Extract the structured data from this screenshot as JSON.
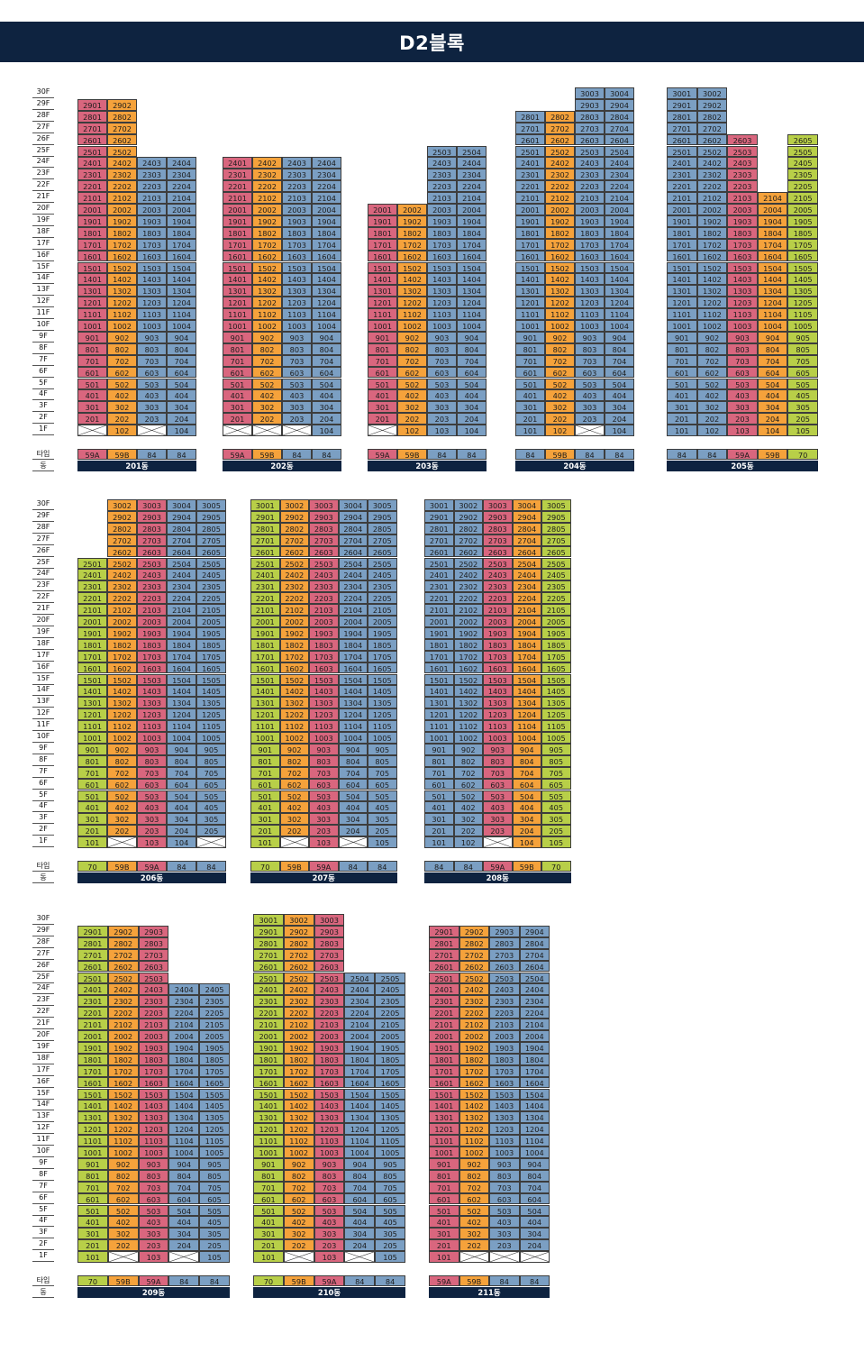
{
  "title": "D2블록",
  "labels": {
    "type": "타입",
    "dong": "동"
  },
  "colors": {
    "59A": "#d9667e",
    "59B": "#f5a23b",
    "84": "#7b9fc3",
    "70": "#b8cf48"
  },
  "floors": [
    "30F",
    "29F",
    "28F",
    "27F",
    "26F",
    "25F",
    "24F",
    "23F",
    "22F",
    "21F",
    "20F",
    "19F",
    "18F",
    "17F",
    "16F",
    "15F",
    "14F",
    "13F",
    "12F",
    "11F",
    "10F",
    "9F",
    "8F",
    "7F",
    "6F",
    "5F",
    "4F",
    "3F",
    "2F",
    "1F"
  ],
  "buildings": [
    {
      "name": "201동",
      "types": [
        "59A",
        "59B",
        "84",
        "84"
      ],
      "cols": [
        {
          "min": 2,
          "max": 29
        },
        {
          "min": 1,
          "max": 29
        },
        {
          "min": 2,
          "max": 24
        },
        {
          "min": 1,
          "max": 24
        }
      ]
    },
    {
      "name": "202동",
      "types": [
        "59A",
        "59B",
        "84",
        "84"
      ],
      "cols": [
        {
          "min": 2,
          "max": 24
        },
        {
          "min": 2,
          "max": 24
        },
        {
          "min": 2,
          "max": 24
        },
        {
          "min": 1,
          "max": 24
        }
      ]
    },
    {
      "name": "203동",
      "types": [
        "59A",
        "59B",
        "84",
        "84"
      ],
      "cols": [
        {
          "min": 2,
          "max": 20
        },
        {
          "min": 1,
          "max": 20
        },
        {
          "min": 1,
          "max": 25
        },
        {
          "min": 1,
          "max": 25
        }
      ]
    },
    {
      "name": "204동",
      "types": [
        "84",
        "59B",
        "84",
        "84"
      ],
      "cols": [
        {
          "min": 1,
          "max": 28
        },
        {
          "min": 1,
          "max": 28
        },
        {
          "min": 2,
          "max": 30
        },
        {
          "min": 1,
          "max": 30
        }
      ]
    },
    {
      "name": "205동",
      "types": [
        "84",
        "84",
        "59A",
        "59B",
        "70"
      ],
      "cols": [
        {
          "min": 1,
          "max": 30
        },
        {
          "min": 1,
          "max": 30
        },
        {
          "min": 1,
          "max": 26
        },
        {
          "min": 1,
          "max": 21
        },
        {
          "min": 1,
          "max": 26
        }
      ]
    },
    {
      "name": "206동",
      "types": [
        "70",
        "59B",
        "59A",
        "84",
        "84"
      ],
      "cols": [
        {
          "min": 1,
          "max": 25
        },
        {
          "min": 2,
          "max": 30
        },
        {
          "min": 1,
          "max": 30
        },
        {
          "min": 1,
          "max": 30
        },
        {
          "min": 2,
          "max": 30
        }
      ]
    },
    {
      "name": "207동",
      "types": [
        "70",
        "59B",
        "59A",
        "84",
        "84"
      ],
      "cols": [
        {
          "min": 1,
          "max": 30
        },
        {
          "min": 2,
          "max": 30
        },
        {
          "min": 1,
          "max": 30
        },
        {
          "min": 2,
          "max": 30
        },
        {
          "min": 1,
          "max": 30
        }
      ]
    },
    {
      "name": "208동",
      "types": [
        "84",
        "84",
        "59A",
        "59B",
        "70"
      ],
      "cols": [
        {
          "min": 1,
          "max": 30
        },
        {
          "min": 1,
          "max": 30
        },
        {
          "min": 2,
          "max": 30
        },
        {
          "min": 1,
          "max": 30
        },
        {
          "min": 1,
          "max": 30
        }
      ]
    },
    {
      "name": "209동",
      "types": [
        "70",
        "59B",
        "59A",
        "84",
        "84"
      ],
      "cols": [
        {
          "min": 1,
          "max": 29
        },
        {
          "min": 2,
          "max": 29
        },
        {
          "min": 1,
          "max": 29
        },
        {
          "min": 2,
          "max": 24
        },
        {
          "min": 1,
          "max": 24
        }
      ]
    },
    {
      "name": "210동",
      "types": [
        "70",
        "59B",
        "59A",
        "84",
        "84"
      ],
      "cols": [
        {
          "min": 1,
          "max": 30
        },
        {
          "min": 2,
          "max": 30
        },
        {
          "min": 1,
          "max": 30
        },
        {
          "min": 2,
          "max": 25
        },
        {
          "min": 1,
          "max": 25
        }
      ]
    },
    {
      "name": "211동",
      "types": [
        "59A",
        "59B",
        "84",
        "84"
      ],
      "cols": [
        {
          "min": 1,
          "max": 29
        },
        {
          "min": 2,
          "max": 29
        },
        {
          "min": 2,
          "max": 29
        },
        {
          "min": 2,
          "max": 29
        }
      ]
    }
  ]
}
